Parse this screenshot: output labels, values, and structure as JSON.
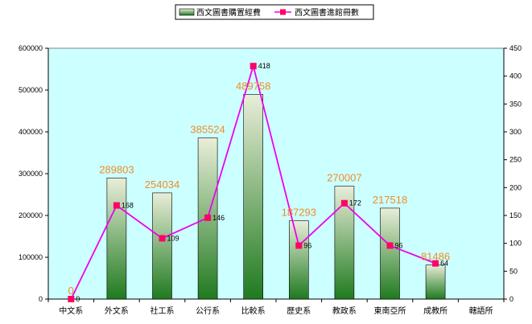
{
  "chart_data": {
    "type": "bar",
    "categories": [
      "中文系",
      "外文系",
      "社工系",
      "公行系",
      "比較系",
      "歷史系",
      "教政系",
      "東南亞所",
      "成教所",
      "轄語所"
    ],
    "series": [
      {
        "name": "西文圖書購置經費",
        "kind": "bar",
        "axis": "left",
        "values": [
          0,
          289803,
          254034,
          385524,
          489758,
          187293,
          270007,
          217518,
          81486,
          null
        ],
        "labels": [
          "0",
          "289803",
          "254034",
          "385524",
          "489758",
          "187293",
          "270007",
          "217518",
          "81486",
          ""
        ]
      },
      {
        "name": "西文圖書進館冊數",
        "kind": "line",
        "axis": "right",
        "values": [
          0,
          168,
          109,
          146,
          418,
          96,
          172,
          96,
          64,
          null
        ],
        "labels": [
          "0",
          "168",
          "109",
          "146",
          "418",
          "96",
          "172",
          "96",
          "64",
          ""
        ]
      }
    ],
    "ylim_left": [
      0,
      600000
    ],
    "yticks_left": [
      "0",
      "100000",
      "200000",
      "300000",
      "400000",
      "500000",
      "600000"
    ],
    "ylim_right": [
      0,
      450
    ],
    "yticks_right": [
      "0",
      "50",
      "100",
      "150",
      "200",
      "250",
      "300",
      "350",
      "400",
      "450"
    ],
    "legend_position": "top",
    "grid": false,
    "colors": {
      "plot_background": "#ccffff",
      "bar_top": "#e9eed9",
      "bar_bottom": "#1f7a1f",
      "line": "#ee00ee",
      "marker": "#ff0066",
      "bar_label": "#f08c28"
    }
  }
}
